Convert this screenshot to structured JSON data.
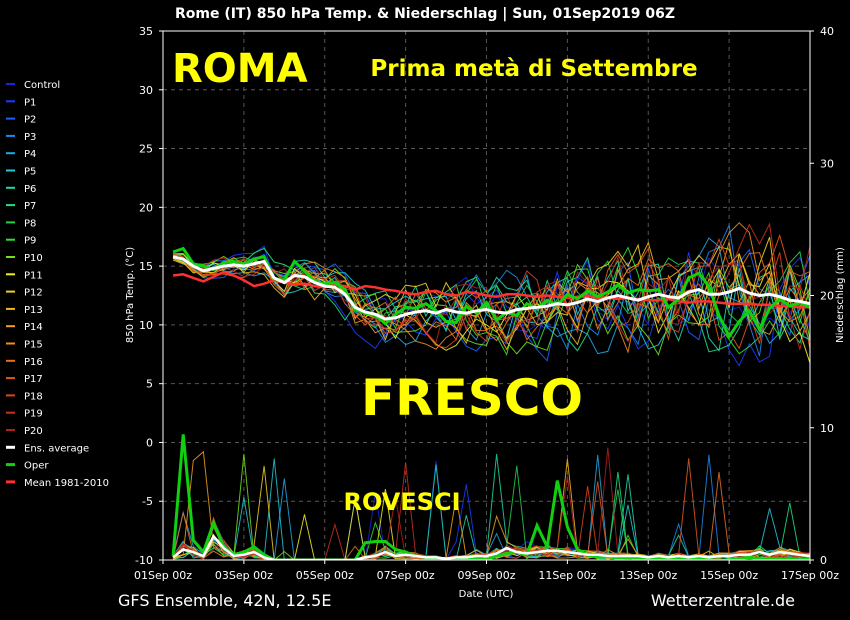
{
  "chart_data": {
    "type": "line",
    "title": "Rome  (IT)  850 hPa Temp. & Niederschlag | Sun, 01Sep2019 06Z",
    "ylabel": "850 hPa Temp. (°C)",
    "y2label": "Niederschlag (mm)",
    "xlabel": "Date (UTC)",
    "ylim": [
      -10,
      35
    ],
    "y2lim": [
      0,
      40
    ],
    "xlim_days": [
      0,
      16
    ],
    "yticks": [
      35,
      30,
      25,
      20,
      15,
      10,
      5,
      0,
      -5,
      -10
    ],
    "y2ticks": [
      40,
      30,
      20,
      10,
      0
    ],
    "xticks": [
      {
        "day": 0,
        "label": "01Sep 00z"
      },
      {
        "day": 2,
        "label": "03Sep 00z"
      },
      {
        "day": 4,
        "label": "05Sep 00z"
      },
      {
        "day": 6,
        "label": "07Sep 00z"
      },
      {
        "day": 8,
        "label": "09Sep 00z"
      },
      {
        "day": 10,
        "label": "11Sep 00z"
      },
      {
        "day": 12,
        "label": "13Sep 00z"
      },
      {
        "day": 14,
        "label": "15Sep 00z"
      },
      {
        "day": 16,
        "label": "17Sep 00z"
      }
    ],
    "grid": true,
    "legend_position": "left",
    "legend": [
      {
        "name": "Control",
        "color": "#2020e0"
      },
      {
        "name": "P1",
        "color": "#1a3cff"
      },
      {
        "name": "P2",
        "color": "#1f5fff"
      },
      {
        "name": "P3",
        "color": "#1e88f0"
      },
      {
        "name": "P4",
        "color": "#20a8e8"
      },
      {
        "name": "P5",
        "color": "#22c8d8"
      },
      {
        "name": "P6",
        "color": "#20d8a8"
      },
      {
        "name": "P7",
        "color": "#20e080"
      },
      {
        "name": "P8",
        "color": "#22d050"
      },
      {
        "name": "P9",
        "color": "#30e030"
      },
      {
        "name": "P10",
        "color": "#70e020"
      },
      {
        "name": "P11",
        "color": "#f0f020"
      },
      {
        "name": "P12",
        "color": "#f0d020"
      },
      {
        "name": "P13",
        "color": "#f0b820"
      },
      {
        "name": "P14",
        "color": "#f0a020"
      },
      {
        "name": "P15",
        "color": "#f08c20"
      },
      {
        "name": "P16",
        "color": "#e87020"
      },
      {
        "name": "P17",
        "color": "#e05a20"
      },
      {
        "name": "P18",
        "color": "#d84520"
      },
      {
        "name": "P19",
        "color": "#c83020"
      },
      {
        "name": "P20",
        "color": "#b02020"
      },
      {
        "name": "Ens. average",
        "color": "#ffffff"
      },
      {
        "name": "Oper",
        "color": "#10d010"
      },
      {
        "name": "Mean 1981-2010",
        "color": "#ff3030"
      }
    ],
    "x_days": [
      0.25,
      0.5,
      0.75,
      1,
      1.25,
      1.5,
      1.75,
      2,
      2.25,
      2.5,
      2.75,
      3,
      3.25,
      3.5,
      3.75,
      4,
      4.25,
      4.5,
      4.75,
      5,
      5.25,
      5.5,
      5.75,
      6,
      6.25,
      6.5,
      6.75,
      7,
      7.25,
      7.5,
      7.75,
      8,
      8.25,
      8.5,
      8.75,
      9,
      9.25,
      9.5,
      9.75,
      10,
      10.25,
      10.5,
      10.75,
      11,
      11.25,
      11.5,
      11.75,
      12,
      12.25,
      12.5,
      12.75,
      13,
      13.25,
      13.5,
      13.75,
      14,
      14.25,
      14.5,
      14.75,
      15,
      15.25,
      15.5,
      15.75,
      16
    ],
    "ens_average_temp": [
      15.8,
      15.6,
      15.0,
      14.6,
      14.8,
      15.0,
      15.1,
      15.0,
      15.2,
      15.4,
      14.0,
      13.6,
      14.2,
      14.1,
      13.6,
      13.3,
      13.2,
      12.6,
      11.5,
      11.1,
      10.9,
      10.5,
      10.6,
      10.9,
      11.1,
      11.2,
      11.0,
      11.3,
      11.1,
      11.0,
      11.2,
      11.3,
      11.1,
      11.0,
      11.3,
      11.4,
      11.5,
      11.6,
      11.8,
      11.7,
      11.9,
      12.2,
      12.0,
      12.3,
      12.5,
      12.3,
      12.1,
      12.4,
      12.6,
      12.4,
      12.3,
      12.8,
      13.0,
      12.6,
      12.6,
      12.8,
      13.1,
      12.7,
      12.5,
      12.6,
      12.4,
      12.1,
      12.0,
      11.8
    ],
    "oper_temp": [
      16.2,
      16.5,
      15.2,
      15.0,
      14.7,
      15.3,
      15.4,
      15.2,
      15.6,
      15.8,
      13.9,
      13.8,
      15.4,
      14.6,
      13.7,
      13.5,
      13.6,
      13.0,
      11.3,
      11.0,
      10.8,
      10.1,
      10.9,
      11.5,
      11.4,
      11.8,
      11.2,
      10.3,
      10.2,
      11.6,
      11.0,
      11.9,
      10.4,
      11.1,
      10.8,
      11.8,
      11.4,
      12.1,
      11.7,
      12.6,
      12.2,
      12.9,
      12.4,
      12.8,
      13.4,
      12.7,
      13.0,
      12.9,
      13.0,
      11.5,
      12.2,
      14.0,
      14.4,
      13.3,
      10.8,
      9.0,
      10.3,
      11.2,
      9.6,
      11.4,
      12.2,
      11.6,
      11.9,
      11.5
    ],
    "mean_1981_2010_temp": [
      14.2,
      14.3,
      14.0,
      13.7,
      14.1,
      14.5,
      14.2,
      13.8,
      13.3,
      13.5,
      13.8,
      13.6,
      13.4,
      13.5,
      13.3,
      13.2,
      13.4,
      13.3,
      13.0,
      13.3,
      13.2,
      13.0,
      12.9,
      12.7,
      12.6,
      12.8,
      12.9,
      12.6,
      12.5,
      12.8,
      12.7,
      12.5,
      12.4,
      12.6,
      12.6,
      12.5,
      12.4,
      12.5,
      12.4,
      12.3,
      12.4,
      12.5,
      12.3,
      12.3,
      12.2,
      12.3,
      12.2,
      12.1,
      12.1,
      12.2,
      12.0,
      11.9,
      12.0,
      12.0,
      11.9,
      11.8,
      11.8,
      11.8,
      11.7,
      11.7,
      11.6,
      11.6,
      11.5,
      11.5
    ],
    "oper_precip_mm": [
      0.3,
      9.5,
      1.5,
      0.6,
      2.8,
      1.0,
      0.4,
      0.6,
      1.0,
      0.4,
      0,
      0,
      0,
      0,
      0,
      0,
      0,
      0,
      0,
      1.3,
      1.4,
      1.4,
      0.8,
      0.6,
      0.3,
      0.2,
      0.1,
      0,
      0.1,
      0,
      0.2,
      0,
      0.3,
      0.5,
      0.6,
      0.4,
      2.6,
      1.0,
      6.0,
      2.5,
      0.8,
      0.4,
      0.2,
      0.3,
      0.1,
      0.2,
      0.1,
      0,
      0.2,
      0,
      0.1,
      0,
      0.1,
      0,
      0,
      0,
      0.1,
      0.2,
      0.1,
      0.1,
      0.1,
      0.1,
      0,
      0.1
    ],
    "ens_average_precip_mm": [
      0.2,
      0.8,
      0.6,
      0.3,
      1.8,
      0.9,
      0.3,
      0.4,
      0.6,
      0.2,
      0,
      0,
      0,
      0,
      0,
      0,
      0,
      0,
      0,
      0.2,
      0.3,
      0.6,
      0.3,
      0.4,
      0.3,
      0.2,
      0.2,
      0.1,
      0.2,
      0.2,
      0.3,
      0.3,
      0.5,
      0.9,
      0.6,
      0.5,
      0.6,
      0.7,
      0.7,
      0.6,
      0.5,
      0.4,
      0.4,
      0.3,
      0.3,
      0.3,
      0.3,
      0.2,
      0.3,
      0.2,
      0.3,
      0.2,
      0.3,
      0.2,
      0.3,
      0.3,
      0.4,
      0.4,
      0.6,
      0.4,
      0.6,
      0.5,
      0.4,
      0.3
    ]
  },
  "annotations": {
    "roma": "ROMA",
    "subtitle": "Prima metà di Settembre",
    "fresco": "FRESCO",
    "rovesci": "ROVESCI"
  },
  "footer": {
    "left": "GFS Ensemble, 42N, 12.5E",
    "right": "Wetterzentrale.de"
  },
  "colors": {
    "background": "#000000",
    "annotation_yellow": "#ffff00",
    "grid": "#555555"
  }
}
